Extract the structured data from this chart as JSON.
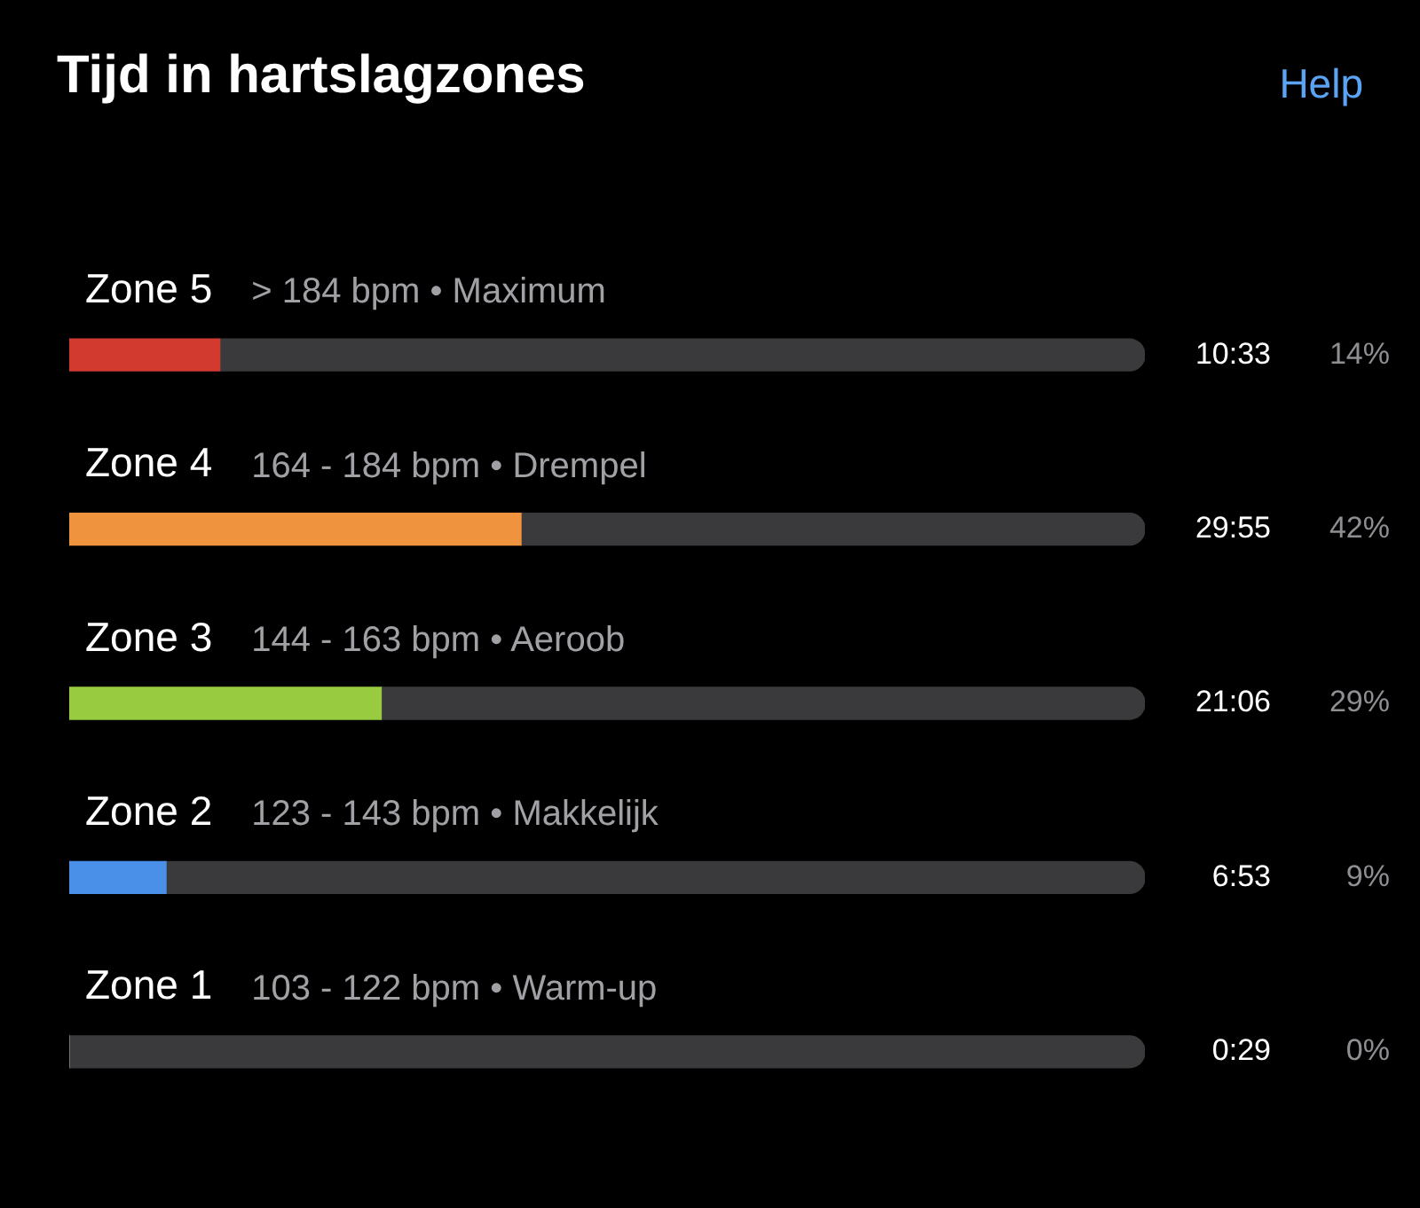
{
  "chart_data": {
    "type": "bar",
    "orientation": "horizontal",
    "title": "Tijd in hartslagzones",
    "categories": [
      "Zone 5",
      "Zone 4",
      "Zone 3",
      "Zone 2",
      "Zone 1"
    ],
    "stacked": true,
    "series": [
      {
        "colors": [
          "#d23a30",
          "#f0933f",
          "#98cb3f",
          "#4a8fe8",
          "#8e8e93"
        ],
        "values": [
          14,
          42,
          29,
          9,
          0
        ],
        "value_labels": [
          "14%",
          "42%",
          "29%",
          "9%",
          "0%"
        ]
      },
      {
        "color": "#3a3a3c",
        "values": [
          86,
          58,
          71,
          91,
          100
        ]
      }
    ],
    "xlim": [
      0,
      100
    ],
    "tick_labels": false,
    "annotations": [
      "Help",
      "> 184 bpm • Maximum",
      "10:33",
      "164 - 184 bpm • Drempel",
      "29:55",
      "144 - 163 bpm • Aeroob",
      "21:06",
      "123 - 143 bpm • Makkelijk",
      "6:53",
      "103 - 122 bpm • Warm-up",
      "0:29"
    ]
  }
}
